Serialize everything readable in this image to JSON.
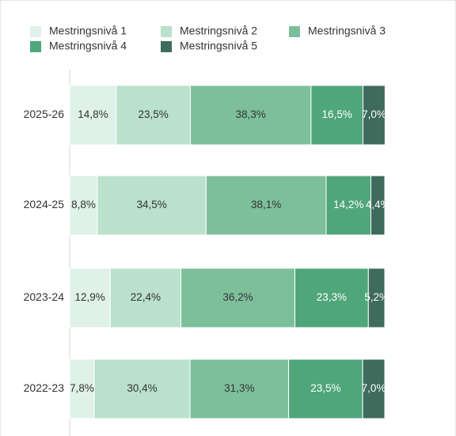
{
  "chart_data": {
    "type": "stacked-bar-horizontal",
    "categories": [
      "2025-26",
      "2024-25",
      "2023-24",
      "2022-23"
    ],
    "xlim": [
      0,
      100
    ],
    "legend": "top-left",
    "series": [
      {
        "name": "Mestringsnivå 1",
        "color": "#dff1e8",
        "values": [
          14.8,
          8.8,
          12.9,
          7.8
        ],
        "value_labels": [
          "14,8%",
          "8,8%",
          "12,9%",
          "7,8%"
        ]
      },
      {
        "name": "Mestringsnivå 2",
        "color": "#b9e1cc",
        "values": [
          23.5,
          34.5,
          22.4,
          30.4
        ],
        "value_labels": [
          "23,5%",
          "34,5%",
          "22,4%",
          "30,4%"
        ]
      },
      {
        "name": "Mestringsnivå 3",
        "color": "#7ebf9b",
        "values": [
          38.3,
          38.1,
          36.2,
          31.3
        ],
        "value_labels": [
          "38,3%",
          "38,1%",
          "36,2%",
          "31,3%"
        ]
      },
      {
        "name": "Mestringsnivå 4",
        "color": "#4fa67a",
        "values": [
          16.5,
          14.2,
          23.3,
          23.5
        ],
        "value_labels": [
          "16,5%",
          "14,2%",
          "23,3%",
          "23,5%"
        ]
      },
      {
        "name": "Mestringsnivå 5",
        "color": "#3e6b5b",
        "values": [
          7.0,
          4.4,
          5.2,
          7.0
        ],
        "value_labels": [
          "7,0%",
          "4,4%",
          "5,2%",
          "7,0%"
        ]
      }
    ]
  }
}
